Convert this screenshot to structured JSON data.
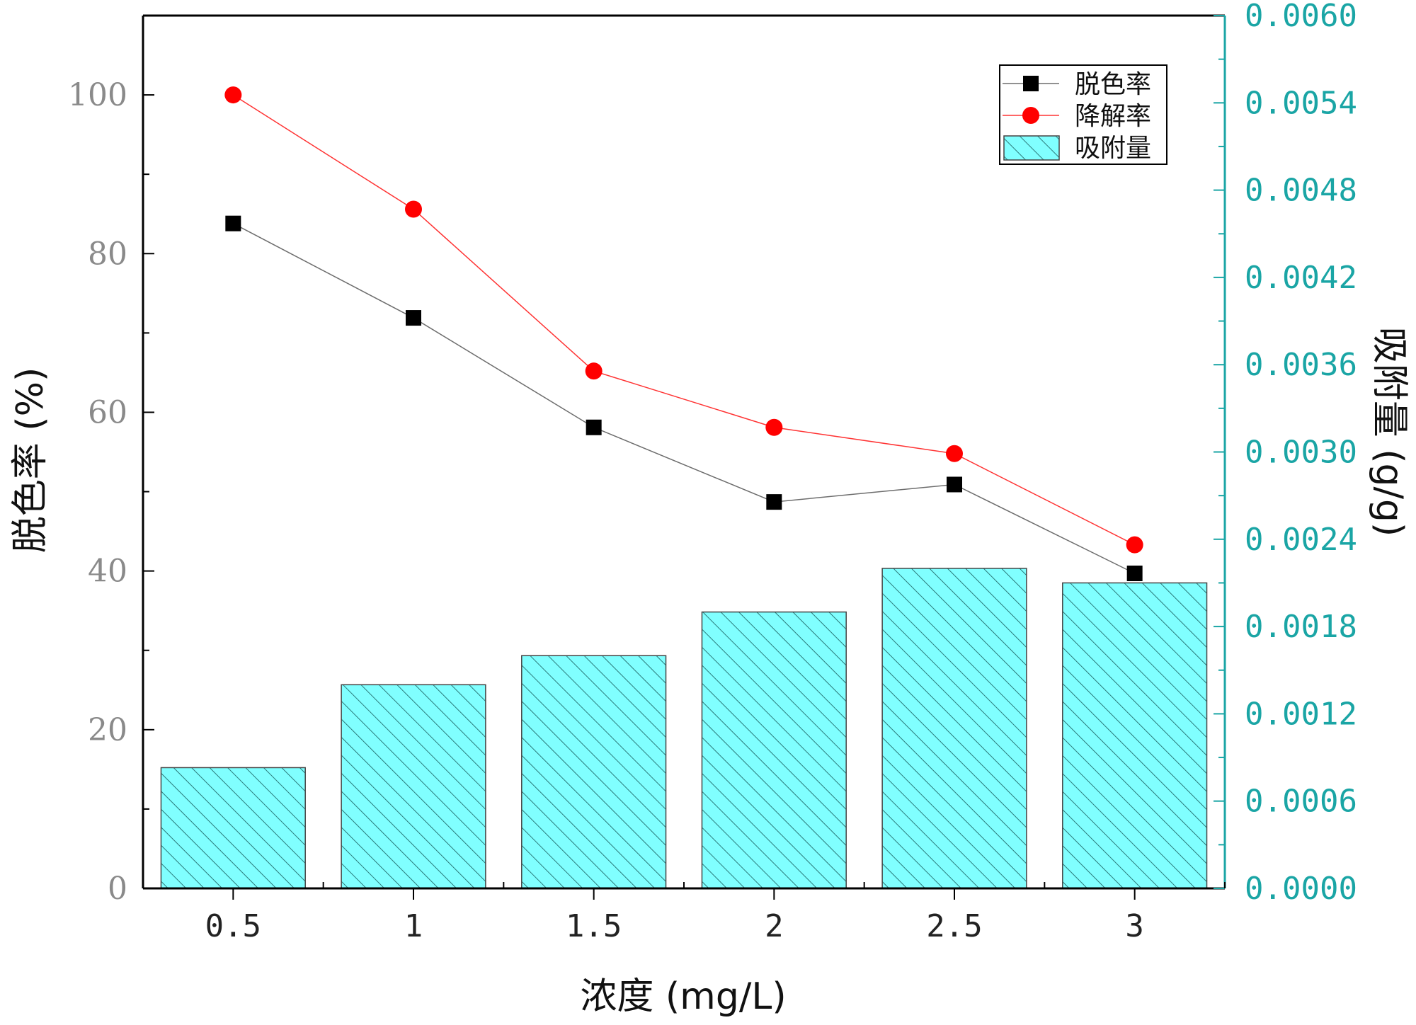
{
  "chart_data": {
    "type": "bar",
    "xlabel": "浓度 (mg/L)",
    "ylabel_left": "脱色率 (%)",
    "ylabel_right": "吸附量 (g/g)",
    "categories": [
      "0.5",
      "1",
      "1.5",
      "2",
      "2.5",
      "3"
    ],
    "ylim_left": [
      0,
      110
    ],
    "yticks_left": [
      "0",
      "20",
      "40",
      "60",
      "80",
      "100"
    ],
    "ylim_right": [
      0,
      0.006
    ],
    "yticks_right": [
      "0.0000",
      "0.0006",
      "0.0012",
      "0.0018",
      "0.0024",
      "0.0030",
      "0.0036",
      "0.0042",
      "0.0048",
      "0.0054",
      "0.0060"
    ],
    "legend_position": "top-right",
    "series": [
      {
        "name": "脱色率",
        "type": "line",
        "axis": "left",
        "marker": "square",
        "color": "#000000",
        "line_color": "#6d6d6d",
        "values": [
          83.8,
          71.9,
          58.1,
          48.7,
          50.9,
          39.7
        ]
      },
      {
        "name": "降解率",
        "type": "line",
        "axis": "right_percent_left",
        "marker": "circle",
        "color": "#ff0000",
        "line_color": "#ff3333",
        "axis_ref": "left",
        "values": [
          100.0,
          85.6,
          65.2,
          58.1,
          54.8,
          43.3
        ]
      },
      {
        "name": "吸附量",
        "type": "bar",
        "axis": "right",
        "color": "#80ffff",
        "hatch_color": "#2b7a7a",
        "values": [
          0.00083,
          0.0014,
          0.0016,
          0.0019,
          0.0022,
          0.0021
        ]
      }
    ]
  }
}
